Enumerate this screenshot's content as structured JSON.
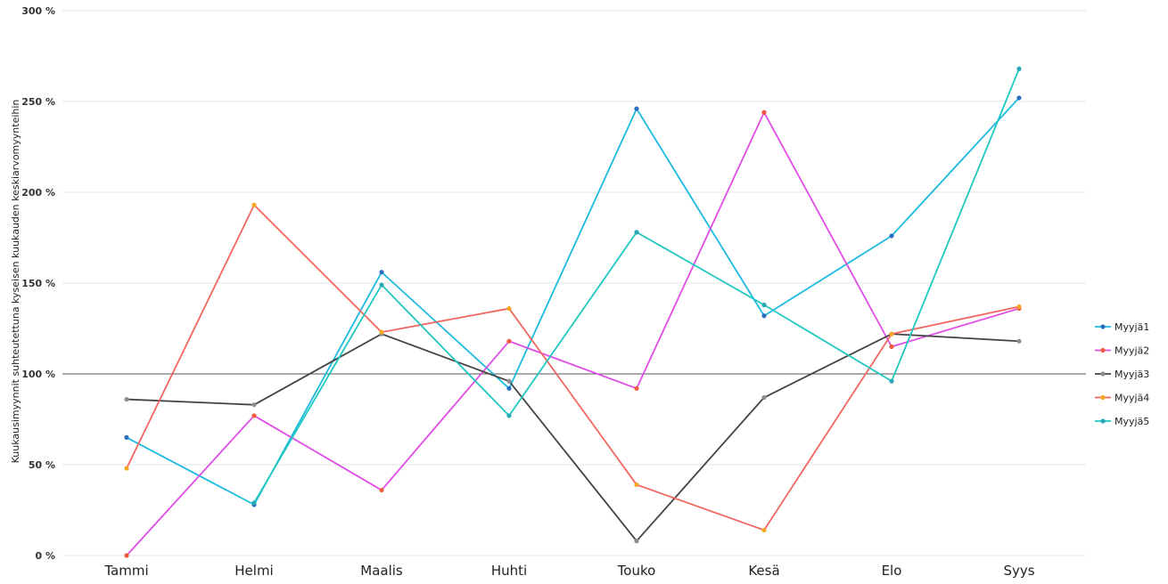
{
  "chart_data": {
    "type": "line",
    "ylabel": "Kuukausimyynnit suhteutettuna kyseisen kuukauden keskiarvomyynteihin",
    "categories": [
      "Tammi",
      "Helmi",
      "Maalis",
      "Huhti",
      "Touko",
      "Kesä",
      "Elo",
      "Syys"
    ],
    "y_ticks": [
      "0 %",
      "50 %",
      "100 %",
      "150 %",
      "200 %",
      "250 %",
      "300 %"
    ],
    "ylim": [
      0,
      300
    ],
    "y_unit": "%",
    "reference_line": 100,
    "grid": true,
    "legend_position": "right",
    "series": [
      {
        "name": "Myyjä1",
        "color": "#1ebbe0",
        "marker": "#2a6fbf",
        "values": [
          65,
          28,
          156,
          92,
          246,
          132,
          176,
          252
        ]
      },
      {
        "name": "Myyjä2",
        "color": "#e14de6",
        "marker": "#f05a3c",
        "values": [
          0,
          77,
          36,
          118,
          92,
          244,
          115,
          136
        ]
      },
      {
        "name": "Myyjä3",
        "color": "#444444",
        "marker": "#8e8e8e",
        "values": [
          86,
          83,
          122,
          96,
          8,
          87,
          122,
          118
        ]
      },
      {
        "name": "Myyjä4",
        "color": "#f26660",
        "marker": "#f5a623",
        "values": [
          48,
          193,
          123,
          136,
          39,
          14,
          122,
          137
        ]
      },
      {
        "name": "Myyjä5",
        "color": "#1ec8c0",
        "marker": "#29a8b8",
        "values": [
          null,
          29,
          149,
          77,
          178,
          138,
          96,
          268
        ]
      }
    ]
  }
}
